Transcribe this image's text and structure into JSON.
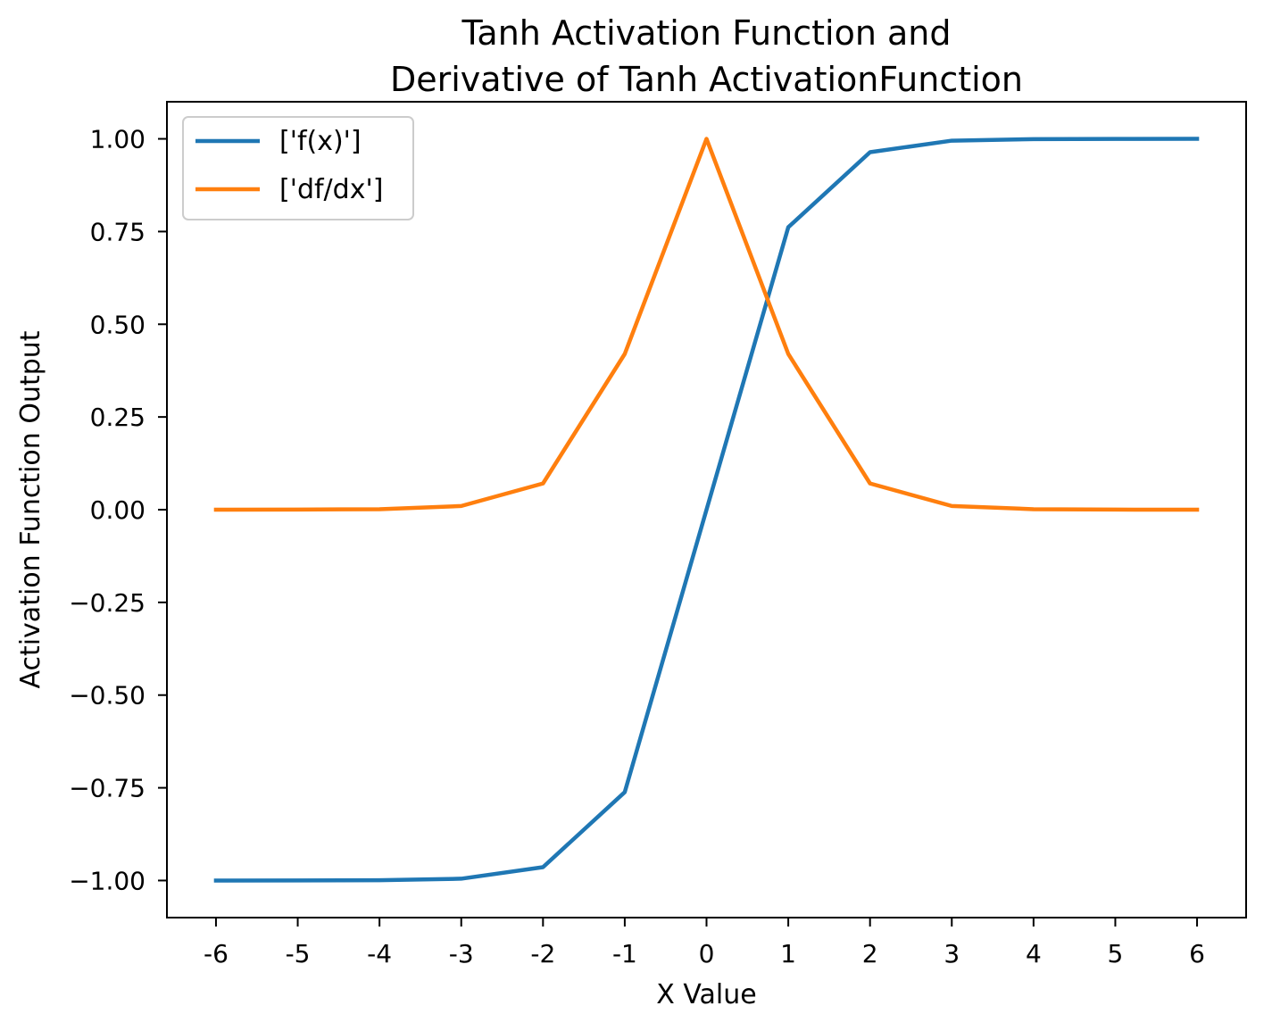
{
  "chart_data": {
    "type": "line",
    "title_lines": [
      "Tanh Activation Function and",
      "Derivative of Tanh ActivationFunction"
    ],
    "xlabel": "X Value",
    "ylabel": "Activation Function Output",
    "x": [
      -6,
      -5,
      -4,
      -3,
      -2,
      -1,
      0,
      1,
      2,
      3,
      4,
      5,
      6
    ],
    "xticks": [
      -6,
      -5,
      -4,
      -3,
      -2,
      -1,
      0,
      1,
      2,
      3,
      4,
      5,
      6
    ],
    "xtick_labels": [
      "-6",
      "-5",
      "-4",
      "-3",
      "-2",
      "-1",
      "0",
      "1",
      "2",
      "3",
      "4",
      "5",
      "6"
    ],
    "yticks": [
      -1.0,
      -0.75,
      -0.5,
      -0.25,
      0.0,
      0.25,
      0.5,
      0.75,
      1.0
    ],
    "ytick_labels": [
      "−1.00",
      "−0.75",
      "−0.50",
      "−0.25",
      "0.00",
      "0.25",
      "0.50",
      "0.75",
      "1.00"
    ],
    "xlim": [
      -6.6,
      6.6
    ],
    "ylim": [
      -1.1,
      1.1
    ],
    "grid": false,
    "legend_position": "upper-left",
    "series": [
      {
        "name": "['f(x)']",
        "color": "#1f77b4",
        "values": [
          -1.0,
          -0.9999,
          -0.9993,
          -0.9951,
          -0.964,
          -0.7616,
          0.0,
          0.7616,
          0.964,
          0.9951,
          0.9993,
          0.9999,
          1.0
        ]
      },
      {
        "name": "['df/dx']",
        "color": "#ff7f0e",
        "values": [
          0.0,
          0.0002,
          0.0013,
          0.0099,
          0.0707,
          0.42,
          1.0,
          0.42,
          0.0707,
          0.0099,
          0.0013,
          0.0002,
          0.0
        ]
      }
    ]
  }
}
